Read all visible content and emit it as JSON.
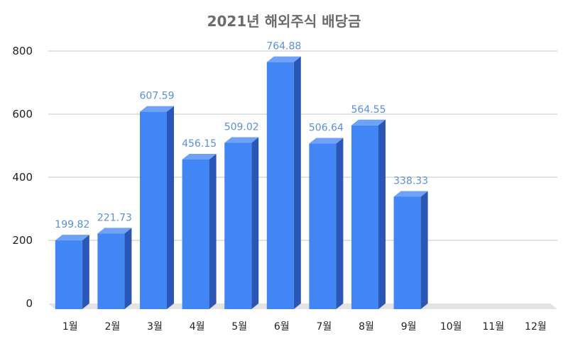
{
  "chart_data": {
    "type": "bar",
    "title": "2021년 해외주식 배당금",
    "categories": [
      "1월",
      "2월",
      "3월",
      "4월",
      "5월",
      "6월",
      "7월",
      "8월",
      "9월",
      "10월",
      "11월",
      "12월"
    ],
    "values": [
      199.82,
      221.73,
      607.59,
      456.15,
      509.02,
      764.88,
      506.64,
      564.55,
      338.33,
      null,
      null,
      null
    ],
    "data_labels": [
      "199.82",
      "221.73",
      "607.59",
      "456.15",
      "509.02",
      "764.88",
      "506.64",
      "564.55",
      "338.33",
      "",
      "",
      ""
    ],
    "ylim": [
      0,
      800
    ],
    "yticks": [
      "0",
      "200",
      "400",
      "600",
      "800"
    ],
    "xlabel": "",
    "ylabel": "",
    "grid": true,
    "legend": "none",
    "style": "3d-bar",
    "colors": {
      "bar_front": "#4285f4",
      "bar_side": "#2a57b5",
      "bar_top": "#6fa1f7",
      "label": "#5b8fd6",
      "title": "#6b6b6b",
      "grid": "#d9d9d9",
      "floor": "#e3e3e3"
    }
  }
}
